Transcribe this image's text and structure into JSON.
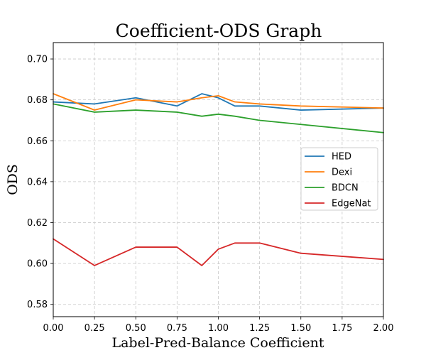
{
  "chart_data": {
    "type": "line",
    "title": "Coefficient-ODS Graph",
    "xlabel": "Label-Pred-Balance Coefficient",
    "ylabel": "ODS",
    "xlim": [
      0.0,
      2.0
    ],
    "ylim": [
      0.574,
      0.708
    ],
    "grid": true,
    "legend_position": "center-right",
    "x": [
      0.0,
      0.25,
      0.5,
      0.75,
      0.9,
      1.0,
      1.1,
      1.25,
      1.5,
      2.0
    ],
    "x_ticks": [
      0.0,
      0.25,
      0.5,
      0.75,
      1.0,
      1.25,
      1.5,
      1.75,
      2.0
    ],
    "x_tick_labels": [
      "0.00",
      "0.25",
      "0.50",
      "0.75",
      "1.00",
      "1.25",
      "1.50",
      "1.75",
      "2.00"
    ],
    "y_ticks": [
      0.58,
      0.6,
      0.62,
      0.64,
      0.66,
      0.68,
      0.7
    ],
    "y_tick_labels": [
      "0.58",
      "0.60",
      "0.62",
      "0.64",
      "0.66",
      "0.68",
      "0.70"
    ],
    "series": [
      {
        "name": "HED",
        "color": "#1f77b4",
        "values": [
          0.679,
          0.678,
          0.681,
          0.677,
          0.683,
          0.681,
          0.677,
          0.677,
          0.675,
          0.676
        ]
      },
      {
        "name": "Dexi",
        "color": "#ff7f0e",
        "values": [
          0.683,
          0.675,
          0.68,
          0.679,
          0.681,
          0.682,
          0.679,
          0.678,
          0.677,
          0.676
        ]
      },
      {
        "name": "BDCN",
        "color": "#2ca02c",
        "values": [
          0.678,
          0.674,
          0.675,
          0.674,
          0.672,
          0.673,
          0.672,
          0.67,
          0.668,
          0.664
        ]
      },
      {
        "name": "EdgeNat",
        "color": "#d62728",
        "values": [
          0.612,
          0.599,
          0.608,
          0.608,
          0.599,
          0.607,
          0.61,
          0.61,
          0.605,
          0.602
        ]
      }
    ]
  }
}
